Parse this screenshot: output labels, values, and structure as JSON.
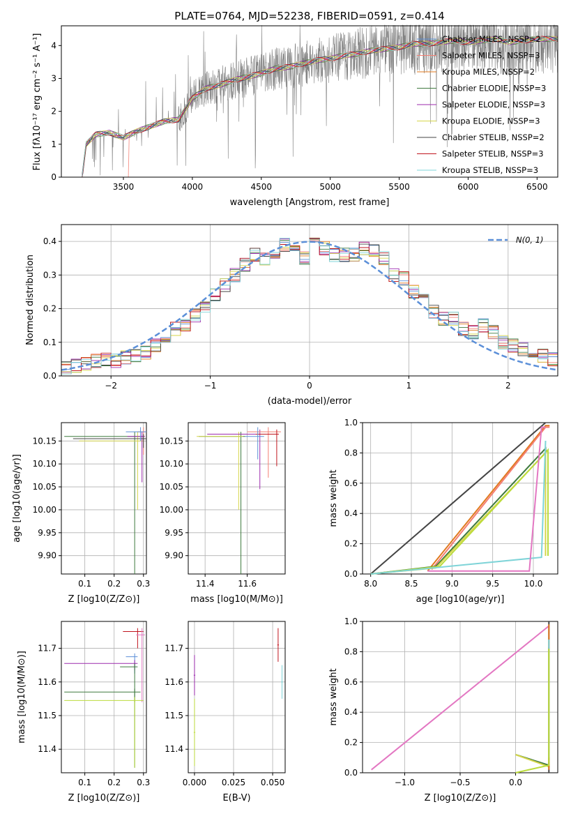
{
  "colors": {
    "chabrier_miles": "#5b8fd8",
    "salpeter_miles": "#f47e72",
    "kroupa_miles": "#e07a1f",
    "chabrier_elodie": "#3f7a3f",
    "salpeter_elodie": "#9b2aad",
    "kroupa_elodie": "#d6d64a",
    "chabrier_stelib": "#444444",
    "salpeter_stelib": "#c0141c",
    "kroupa_stelib": "#7fd4d8",
    "spectrum": "#808080",
    "normal": "#5b8fd8",
    "pink": "#e377c2",
    "lime": "#bcdc3c",
    "teal": "#17becf"
  },
  "chart_data": [
    {
      "id": "spectrum",
      "type": "line",
      "title": "PLATE=0764, MJD=52238, FIBERID=0591, z=0.414",
      "xlabel": "wavelength [Angstrom, rest frame]",
      "ylabel": "Flux [fλ10⁻¹⁷ erg cm⁻² s⁻¹ A⁻¹]",
      "xlim": [
        3050,
        6650
      ],
      "ylim": [
        0,
        4.6
      ],
      "xticks": [
        "3500",
        "4000",
        "4500",
        "5000",
        "5500",
        "6000",
        "6500"
      ],
      "yticks": [
        "0",
        "1",
        "2",
        "3",
        "4"
      ],
      "legend_position": "top-right",
      "legend": [
        "Chabrier MILES, NSSP=2",
        "Salpeter MILES, NSSP=3",
        "Kroupa MILES, NSSP=2",
        "Chabrier ELODIE, NSSP=3",
        "Salpeter ELODIE, NSSP=3",
        "Kroupa ELODIE, NSSP=3",
        "Chabrier STELIB, NSSP=2",
        "Salpeter STELIB, NSSP=3",
        "Kroupa STELIB, NSSP=3"
      ],
      "model_curve": {
        "x": [
          3200,
          3230,
          3300,
          3400,
          3500,
          3600,
          3700,
          3800,
          3900,
          4000,
          4100,
          4200,
          4300,
          4400,
          4500,
          4600,
          4700,
          4800,
          4900,
          5000,
          5100,
          5200,
          5300,
          5400,
          5500,
          5600,
          5700,
          5800,
          5900,
          6000,
          6100,
          6200,
          6300,
          6400,
          6500,
          6600
        ],
        "y": [
          0,
          1.0,
          1.3,
          1.35,
          1.2,
          1.4,
          1.55,
          1.7,
          1.75,
          2.4,
          2.7,
          2.8,
          2.95,
          3.05,
          3.15,
          3.3,
          3.35,
          3.45,
          3.55,
          3.6,
          3.7,
          3.75,
          3.85,
          3.9,
          3.95,
          4.05,
          4.05,
          4.1,
          4.15,
          4.1,
          4.15,
          4.2,
          4.1,
          4.15,
          4.2,
          4.2
        ]
      }
    },
    {
      "id": "residuals",
      "type": "line",
      "xlabel": "(data-model)/error",
      "ylabel": "Normed distribution",
      "xlim": [
        -2.5,
        2.5
      ],
      "ylim": [
        0,
        0.45
      ],
      "xticks": [
        "−2",
        "−1",
        "0",
        "1",
        "2"
      ],
      "yticks": [
        "0.0",
        "0.1",
        "0.2",
        "0.3",
        "0.4"
      ],
      "legend": [
        "N(0, 1)"
      ],
      "legend_position": "top-right",
      "bin_edges": [
        -2.5,
        -2.4,
        -2.3,
        -2.2,
        -2.1,
        -2.0,
        -1.9,
        -1.8,
        -1.7,
        -1.6,
        -1.5,
        -1.4,
        -1.3,
        -1.2,
        -1.1,
        -1.0,
        -0.9,
        -0.8,
        -0.7,
        -0.6,
        -0.5,
        -0.4,
        -0.3,
        -0.2,
        -0.1,
        0.0,
        0.1,
        0.2,
        0.3,
        0.4,
        0.5,
        0.6,
        0.7,
        0.8,
        0.9,
        1.0,
        1.1,
        1.2,
        1.3,
        1.4,
        1.5,
        1.6,
        1.7,
        1.8,
        1.9,
        2.0,
        2.1,
        2.2,
        2.3,
        2.4,
        2.5
      ],
      "hist_mean": [
        0.025,
        0.03,
        0.035,
        0.045,
        0.05,
        0.045,
        0.055,
        0.06,
        0.07,
        0.09,
        0.12,
        0.14,
        0.15,
        0.18,
        0.2,
        0.24,
        0.27,
        0.3,
        0.33,
        0.36,
        0.35,
        0.37,
        0.39,
        0.38,
        0.35,
        0.39,
        0.38,
        0.36,
        0.36,
        0.36,
        0.38,
        0.37,
        0.35,
        0.3,
        0.29,
        0.25,
        0.23,
        0.19,
        0.17,
        0.17,
        0.14,
        0.13,
        0.15,
        0.13,
        0.1,
        0.09,
        0.08,
        0.07,
        0.06,
        0.05
      ]
    },
    {
      "id": "age-vs-Z",
      "type": "scatter",
      "xlabel": "Z [log10(Z/Z⊙)]",
      "ylabel": "age  [log10(age/yr)]",
      "xlim": [
        0.02,
        0.31
      ],
      "ylim": [
        9.86,
        10.19
      ],
      "xticks": [
        "0.1",
        "0.2",
        "0.3"
      ],
      "yticks": [
        "9.90",
        "9.95",
        "10.00",
        "10.05",
        "10.10",
        "10.15"
      ]
    },
    {
      "id": "age-vs-mass",
      "type": "scatter",
      "xlabel": "mass [log10(M/M⊙)]",
      "xlim": [
        11.32,
        11.78
      ],
      "ylim": [
        9.86,
        10.19
      ],
      "xticks": [
        "11.4",
        "11.6"
      ],
      "yticks": [
        "9.90",
        "9.95",
        "10.00",
        "10.05",
        "10.10",
        "10.15"
      ]
    },
    {
      "id": "weight-vs-age",
      "type": "line",
      "xlabel": "age  [log10(age/yr)]",
      "ylabel": "mass weight",
      "xlim": [
        7.9,
        10.3
      ],
      "ylim": [
        0,
        1.0
      ],
      "xticks": [
        "8.0",
        "8.5",
        "9.0",
        "9.5",
        "10.0"
      ],
      "yticks": [
        "0.0",
        "0.2",
        "0.4",
        "0.6",
        "0.8",
        "1.0"
      ],
      "series": [
        {
          "x": [
            8.0,
            10.15
          ],
          "y": [
            0.0,
            1.0
          ]
        },
        {
          "x": [
            8.7,
            10.15,
            10.2
          ],
          "y": [
            0.02,
            0.98,
            0.98
          ]
        },
        {
          "x": [
            8.75,
            10.15,
            10.2
          ],
          "y": [
            0.03,
            0.97,
            0.97
          ]
        },
        {
          "x": [
            8.0,
            8.8,
            10.15,
            10.15
          ],
          "y": [
            0.0,
            0.05,
            0.83,
            0.12
          ]
        },
        {
          "x": [
            8.0,
            8.8,
            10.15,
            10.15
          ],
          "y": [
            0.0,
            0.04,
            0.8,
            0.12
          ]
        },
        {
          "x": [
            8.0,
            8.85,
            10.18,
            10.18
          ],
          "y": [
            0.0,
            0.05,
            0.82,
            0.12
          ]
        },
        {
          "x": [
            8.0,
            10.1,
            10.15
          ],
          "y": [
            0.0,
            0.11,
            0.88
          ]
        },
        {
          "x": [
            8.7,
            9.95,
            10.1,
            10.15
          ],
          "y": [
            0.02,
            0.02,
            0.97,
            0.97
          ]
        }
      ]
    },
    {
      "id": "mass-vs-Z",
      "type": "scatter",
      "xlabel": "Z [log10(Z/Z⊙)]",
      "ylabel": "mass [log10(M/M⊙)]",
      "xlim": [
        0.02,
        0.31
      ],
      "ylim": [
        11.33,
        11.78
      ],
      "xticks": [
        "0.1",
        "0.2",
        "0.3"
      ],
      "yticks": [
        "11.4",
        "11.5",
        "11.6",
        "11.7"
      ]
    },
    {
      "id": "mass-vs-ebv",
      "type": "scatter",
      "xlabel": "E(B-V)",
      "xlim": [
        -0.004,
        0.058
      ],
      "ylim": [
        11.33,
        11.78
      ],
      "xticks": [
        "0.000",
        "0.025",
        "0.050"
      ],
      "yticks": [
        "11.4",
        "11.5",
        "11.6",
        "11.7"
      ]
    },
    {
      "id": "weight-vs-Z",
      "type": "line",
      "xlabel": "Z [log10(Z/Z⊙)]",
      "ylabel": "mass weight",
      "xlim": [
        -1.38,
        0.38
      ],
      "ylim": [
        0,
        1.0
      ],
      "xticks": [
        "−1.0",
        "−0.5",
        "0.0"
      ],
      "yticks": [
        "0.0",
        "0.2",
        "0.4",
        "0.6",
        "0.8",
        "1.0"
      ],
      "series": [
        {
          "x": [
            -1.3,
            0.3
          ],
          "y": [
            0.02,
            0.97
          ]
        },
        {
          "x": [
            0.0,
            0.3,
            0.3
          ],
          "y": [
            0.12,
            0.05,
            0.83
          ]
        },
        {
          "x": [
            0.0,
            0.3,
            0.3
          ],
          "y": [
            0.12,
            0.04,
            0.8
          ]
        },
        {
          "x": [
            0.3,
            0.3
          ],
          "y": [
            0.0,
            1.0
          ]
        },
        {
          "x": [
            0.3,
            0.3
          ],
          "y": [
            0.02,
            0.98
          ]
        },
        {
          "x": [
            0.3,
            0.3
          ],
          "y": [
            0.1,
            0.88
          ]
        },
        {
          "x": [
            0.0,
            0.3,
            0.3
          ],
          "y": [
            0.0,
            0.05,
            0.82
          ]
        }
      ]
    }
  ]
}
